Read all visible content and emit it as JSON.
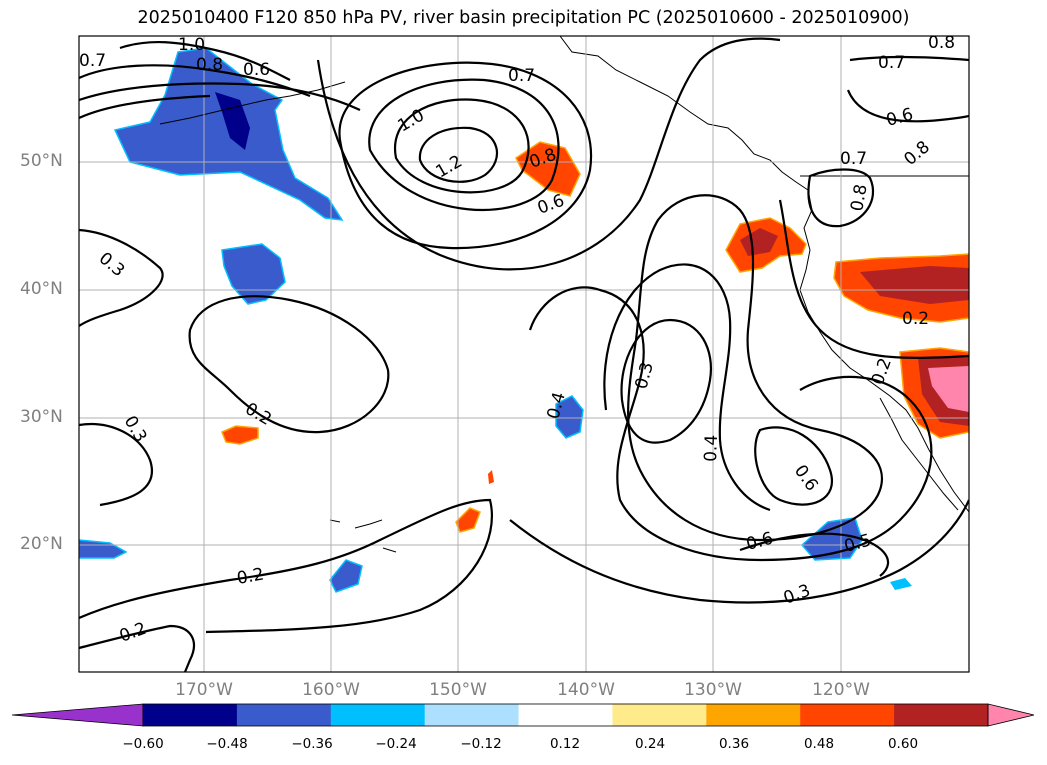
{
  "title": "2025010400 F120 850 hPa PV, river basin precipitation PC (2025010600 - 2025010900)",
  "lat_labels": [
    "50°N",
    "40°N",
    "30°N",
    "20°N"
  ],
  "lon_labels": [
    "170°W",
    "160°W",
    "150°W",
    "140°W",
    "130°W",
    "120°W"
  ],
  "colorbar": {
    "colors": [
      "#9932CC",
      "#00008B",
      "#3A5BCC",
      "#00BFFF",
      "#ADDFFF",
      "#FFFFFF",
      "#FFEB8C",
      "#FFA500",
      "#FF4500",
      "#B22222",
      "#FF85AD"
    ],
    "tick_labels": [
      "−0.60",
      "−0.48",
      "−0.36",
      "−0.24",
      "−0.12",
      "0.12",
      "0.24",
      "0.36",
      "0.48",
      "0.60"
    ]
  },
  "contour_labels": [
    "1.0",
    "0.8",
    "0.6",
    "0.7",
    "1.0",
    "1.2",
    "0.7",
    "0.8",
    "0.6",
    "0.7",
    "0.6",
    "0.8",
    "0.7",
    "0.8",
    "0.8",
    "0.3",
    "0.3",
    "0.2",
    "0.4",
    "0.3",
    "0.4",
    "0.6",
    "0.6",
    "0.5",
    "0.3",
    "0.2",
    "0.2",
    "0.2",
    "0.2"
  ],
  "contour_levels_note": "",
  "colors": {
    "land_outline": "#000000",
    "grid": "#b0b0b0",
    "contour": "#000000"
  }
}
